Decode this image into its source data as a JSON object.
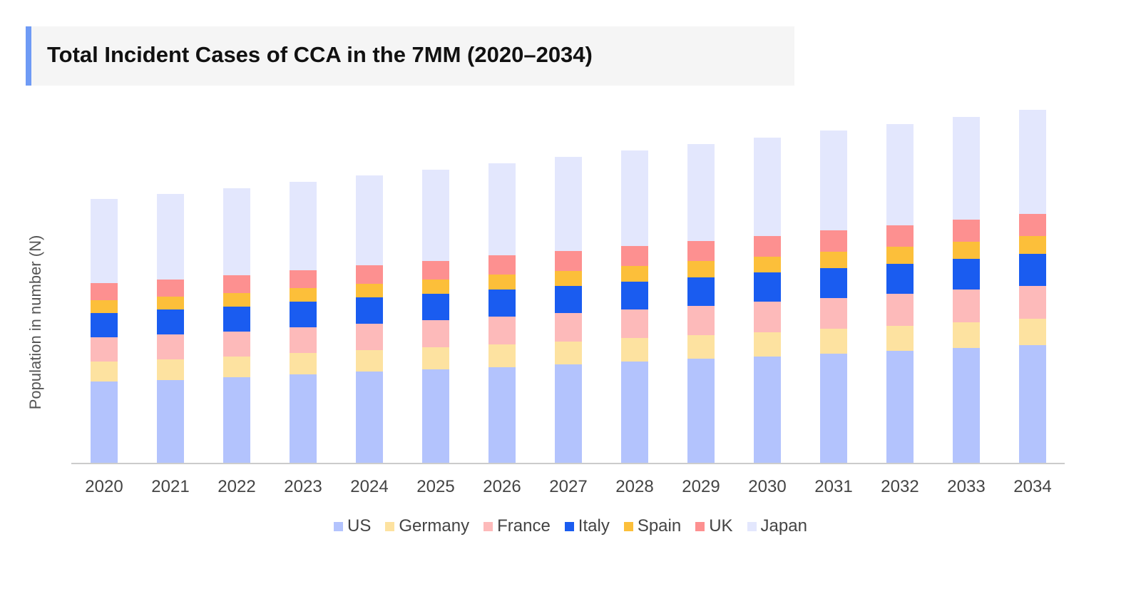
{
  "chart_data": {
    "type": "bar",
    "stacked": true,
    "title": "Total Incident Cases of CCA in the 7MM (2020–2034)",
    "xlabel": "",
    "ylabel": "Population in number (N)",
    "ylim": [
      0,
      500
    ],
    "y_ticks_shown": false,
    "grid": false,
    "legend_position": "bottom",
    "categories": [
      "2020",
      "2021",
      "2022",
      "2023",
      "2024",
      "2025",
      "2026",
      "2027",
      "2028",
      "2029",
      "2030",
      "2031",
      "2032",
      "2033",
      "2034"
    ],
    "series": [
      {
        "name": "US",
        "color": "#b3c3fd",
        "values": [
          115,
          117,
          121,
          125,
          129,
          132,
          135,
          139,
          143,
          147,
          150,
          154,
          158,
          162,
          166
        ]
      },
      {
        "name": "Germany",
        "color": "#fde2a0",
        "values": [
          28,
          29,
          29,
          30,
          30,
          31,
          32,
          32,
          33,
          33,
          34,
          35,
          35,
          36,
          37
        ]
      },
      {
        "name": "France",
        "color": "#fdbaba",
        "values": [
          34,
          35,
          35,
          36,
          37,
          38,
          39,
          40,
          40,
          41,
          43,
          43,
          45,
          46,
          46
        ]
      },
      {
        "name": "Italy",
        "color": "#1a5cf0",
        "values": [
          34,
          35,
          35,
          36,
          37,
          37,
          38,
          38,
          39,
          40,
          41,
          42,
          42,
          43,
          45
        ]
      },
      {
        "name": "Spain",
        "color": "#fcbf3a",
        "values": [
          18,
          18,
          19,
          19,
          19,
          20,
          21,
          21,
          22,
          23,
          22,
          23,
          24,
          24,
          25
        ]
      },
      {
        "name": "UK",
        "color": "#fd9090",
        "values": [
          24,
          24,
          25,
          25,
          26,
          26,
          27,
          28,
          28,
          28,
          29,
          30,
          30,
          31,
          31
        ]
      },
      {
        "name": "Japan",
        "color": "#e3e7fd",
        "values": [
          118,
          120,
          122,
          124,
          126,
          128,
          129,
          132,
          134,
          136,
          138,
          140,
          142,
          144,
          146
        ]
      }
    ]
  }
}
